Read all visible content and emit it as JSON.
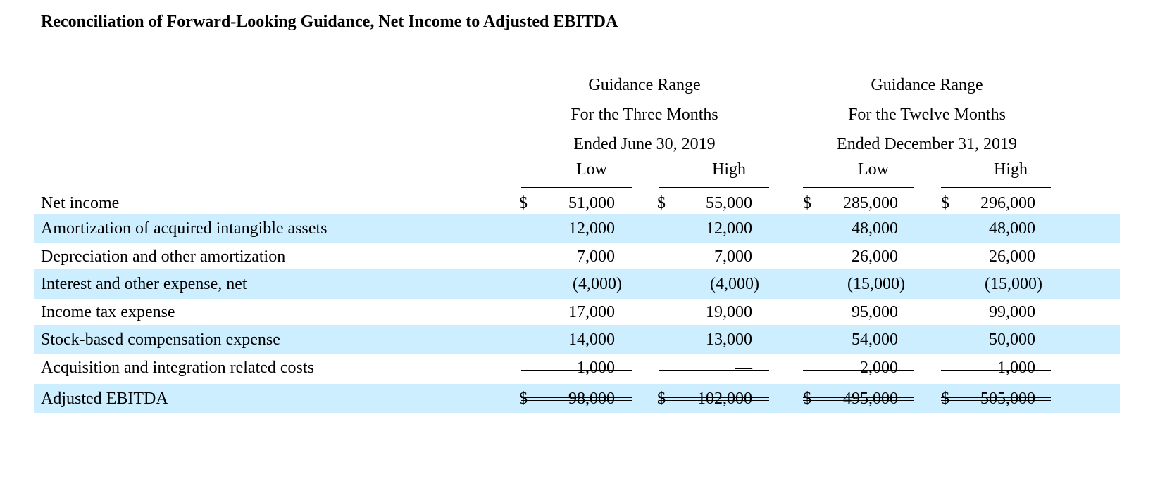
{
  "title": "Reconciliation of Forward-Looking Guidance, Net Income to Adjusted EBITDA",
  "groups": [
    {
      "line1": "Guidance Range",
      "line2": "For the Three Months",
      "line3": "Ended June 30, 2019",
      "low": "Low",
      "high": "High"
    },
    {
      "line1": "Guidance Range",
      "line2": "For the Twelve Months",
      "line3": "Ended December 31, 2019",
      "low": "Low",
      "high": "High"
    }
  ],
  "currency_symbol": "$",
  "rows": [
    {
      "label": "Net income",
      "values": [
        "51,000",
        "55,000",
        "285,000",
        "296,000"
      ],
      "dollar": true,
      "shaded": false
    },
    {
      "label": "Amortization of acquired intangible assets",
      "values": [
        "12,000",
        "12,000",
        "48,000",
        "48,000"
      ],
      "dollar": false,
      "shaded": true
    },
    {
      "label": "Depreciation and other amortization",
      "values": [
        "7,000",
        "7,000",
        "26,000",
        "26,000"
      ],
      "dollar": false,
      "shaded": false
    },
    {
      "label": "Interest and other expense, net",
      "values": [
        "(4,000)",
        "(4,000)",
        "(15,000)",
        "(15,000)"
      ],
      "dollar": false,
      "shaded": true
    },
    {
      "label": "Income tax expense",
      "values": [
        "17,000",
        "19,000",
        "95,000",
        "99,000"
      ],
      "dollar": false,
      "shaded": false
    },
    {
      "label": "Stock-based compensation expense",
      "values": [
        "14,000",
        "13,000",
        "54,000",
        "50,000"
      ],
      "dollar": false,
      "shaded": true
    },
    {
      "label": "Acquisition and integration related costs",
      "values": [
        "1,000",
        "—",
        "2,000",
        "1,000"
      ],
      "dollar": false,
      "shaded": false
    },
    {
      "label": "Adjusted EBITDA",
      "values": [
        "98,000",
        "102,000",
        "495,000",
        "505,000"
      ],
      "dollar": true,
      "shaded": true
    }
  ]
}
